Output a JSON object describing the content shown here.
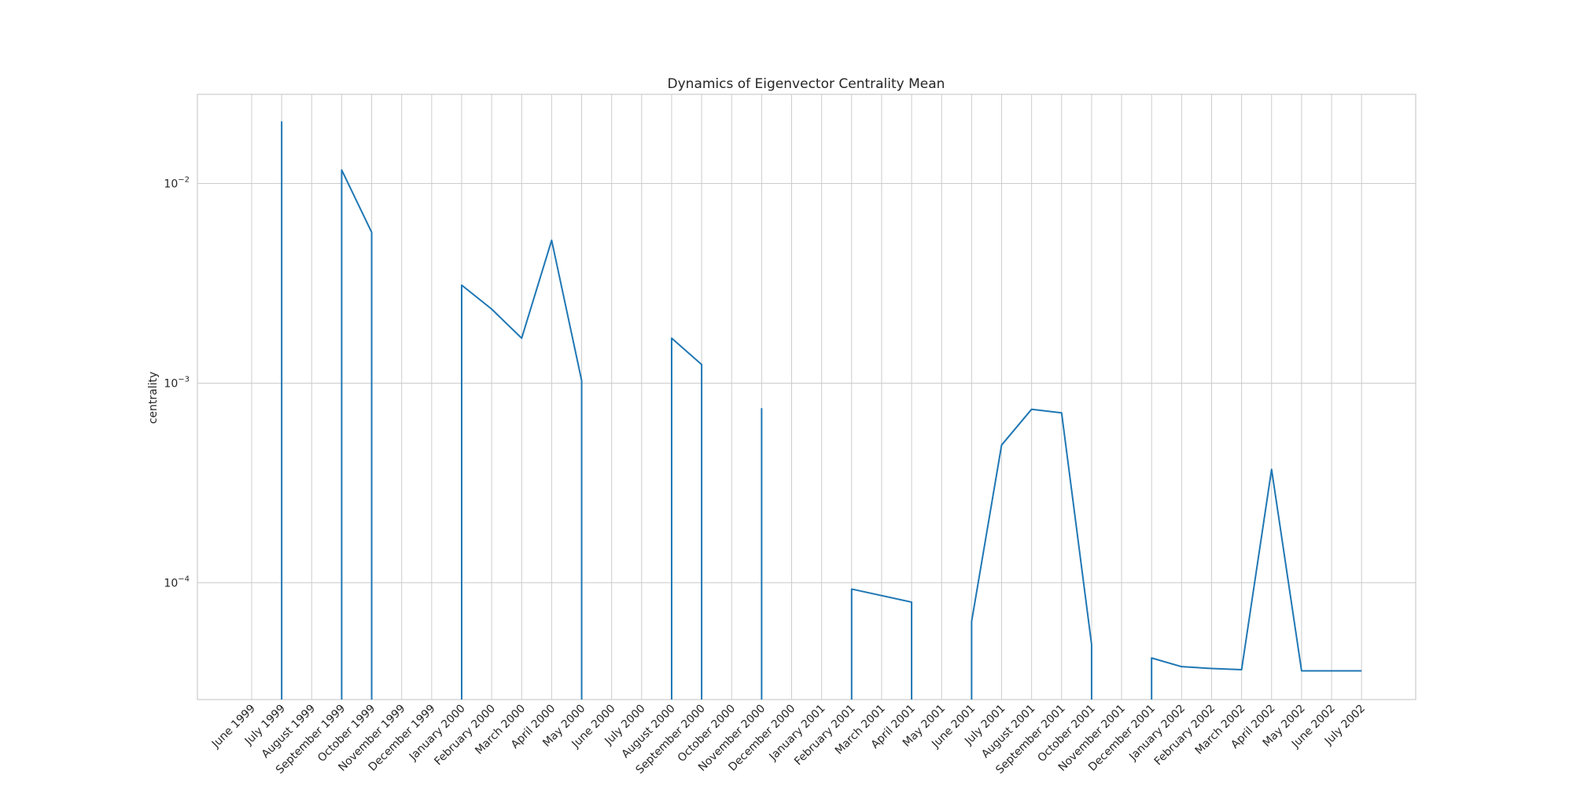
{
  "chart_data": {
    "type": "line",
    "title": "Dynamics of Eigenvector Centrality Mean",
    "xlabel": "",
    "ylabel": "centrality",
    "yscale": "log",
    "grid": true,
    "color": "#1f77b4",
    "x_ticks": [
      "June 1999",
      "July 1999",
      "August 1999",
      "September 1999",
      "October 1999",
      "November 1999",
      "December 1999",
      "January 2000",
      "February 2000",
      "March 2000",
      "April 2000",
      "May 2000",
      "June 2000",
      "July 2000",
      "August 2000",
      "September 2000",
      "October 2000",
      "November 2000",
      "December 2000",
      "January 2001",
      "February 2001",
      "March 2001",
      "April 2001",
      "May 2001",
      "June 2001",
      "July 2001",
      "August 2001",
      "September 2001",
      "October 2001",
      "November 2001",
      "December 2001",
      "January 2002",
      "February 2002",
      "March 2002",
      "April 2002",
      "May 2002",
      "June 2002",
      "July 2002"
    ],
    "y_ticks": [
      {
        "value": 0.01,
        "base": "10",
        "exp": "−2"
      },
      {
        "value": 0.001,
        "base": "10",
        "exp": "−3"
      },
      {
        "value": 0.0001,
        "base": "10",
        "exp": "−4"
      }
    ],
    "ylim": [
      2.6e-05,
      0.028
    ],
    "series": [
      {
        "segments": [
          [
            [
              "July 1999",
              2.6e-05
            ],
            [
              "July 1999",
              0.0205
            ]
          ],
          [
            [
              "September 1999",
              2.6e-05
            ],
            [
              "September 1999",
              0.0117
            ],
            [
              "October 1999",
              0.0057
            ],
            [
              "October 1999",
              2.6e-05
            ]
          ],
          [
            [
              "January 2000",
              2.6e-05
            ],
            [
              "January 2000",
              0.0031
            ],
            [
              "February 2000",
              0.00235
            ],
            [
              "March 2000",
              0.00168
            ],
            [
              "April 2000",
              0.0052
            ],
            [
              "May 2000",
              0.00103
            ],
            [
              "May 2000",
              2.6e-05
            ]
          ],
          [
            [
              "August 2000",
              2.6e-05
            ],
            [
              "August 2000",
              0.00168
            ],
            [
              "September 2000",
              0.00124
            ],
            [
              "September 2000",
              2.6e-05
            ]
          ],
          [
            [
              "November 2000",
              2.6e-05
            ],
            [
              "November 2000",
              0.00075
            ]
          ],
          [
            [
              "February 2001",
              2.6e-05
            ],
            [
              "February 2001",
              9.3e-05
            ],
            [
              "April 2001",
              8e-05
            ],
            [
              "April 2001",
              2.6e-05
            ]
          ],
          [
            [
              "June 2001",
              2.6e-05
            ],
            [
              "June 2001",
              6.4e-05
            ],
            [
              "July 2001",
              0.00049
            ],
            [
              "August 2001",
              0.00074
            ],
            [
              "September 2001",
              0.00071
            ],
            [
              "October 2001",
              4.9e-05
            ],
            [
              "October 2001",
              2.6e-05
            ]
          ],
          [
            [
              "December 2001",
              2.6e-05
            ],
            [
              "December 2001",
              4.2e-05
            ],
            [
              "January 2002",
              3.8e-05
            ],
            [
              "February 2002",
              3.72e-05
            ],
            [
              "March 2002",
              3.67e-05
            ],
            [
              "April 2002",
              0.00037
            ],
            [
              "May 2002",
              3.62e-05
            ],
            [
              "June 2002",
              3.62e-05
            ],
            [
              "July 2002",
              3.62e-05
            ]
          ]
        ]
      }
    ]
  }
}
